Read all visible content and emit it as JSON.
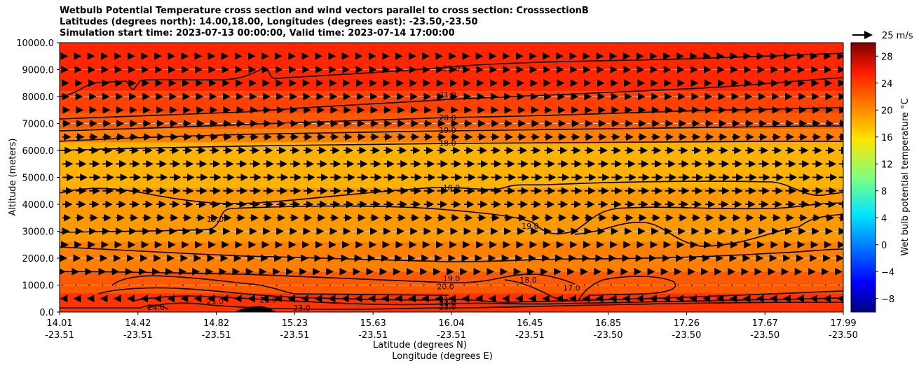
{
  "chart_data": {
    "type": "contour",
    "title": [
      "Wetbulb Potential Temperature cross section and wind vectors parallel to cross section: CrosssectionB",
      "Latitudes (degrees north): 14.00,18.00, Longitudes (degrees east): -23.50,-23.50",
      "Simulation start time: 2023-07-13 00:00:00, Valid time: 2023-07-14 17:00:00"
    ],
    "ylabel": "Altitude (meters)",
    "xlabel_lat": "Latitude (degrees N)",
    "xlabel_lon": "Longitude (degrees E)",
    "ylim": [
      0,
      10000
    ],
    "yticks": [
      {
        "value": 0,
        "label": "0.0"
      },
      {
        "value": 1000,
        "label": "1000.0"
      },
      {
        "value": 2000,
        "label": "2000.0"
      },
      {
        "value": 3000,
        "label": "3000.0"
      },
      {
        "value": 4000,
        "label": "4000.0"
      },
      {
        "value": 5000,
        "label": "5000.0"
      },
      {
        "value": 6000,
        "label": "6000.0"
      },
      {
        "value": 7000,
        "label": "7000.0"
      },
      {
        "value": 8000,
        "label": "8000.0"
      },
      {
        "value": 9000,
        "label": "9000.0"
      },
      {
        "value": 10000,
        "label": "10000.0"
      }
    ],
    "xrange": [
      14.01,
      17.99
    ],
    "xticks": [
      {
        "lat": "14.01",
        "lon": "-23.51"
      },
      {
        "lat": "14.42",
        "lon": "-23.51"
      },
      {
        "lat": "14.82",
        "lon": "-23.51"
      },
      {
        "lat": "15.23",
        "lon": "-23.51"
      },
      {
        "lat": "15.63",
        "lon": "-23.51"
      },
      {
        "lat": "16.04",
        "lon": "-23.51"
      },
      {
        "lat": "16.45",
        "lon": "-23.51"
      },
      {
        "lat": "16.85",
        "lon": "-23.50"
      },
      {
        "lat": "17.26",
        "lon": "-23.50"
      },
      {
        "lat": "17.67",
        "lon": "-23.50"
      },
      {
        "lat": "17.99",
        "lon": "-23.50"
      }
    ],
    "colorbar": {
      "label": "Wet bulb potential temperature $^\\circ$C",
      "label_text": "Wet bulb potential temperature °C",
      "range": [
        -10,
        30
      ],
      "ticks": [
        "−8",
        "−4",
        "0",
        "4",
        "8",
        "12",
        "16",
        "20",
        "24",
        "28"
      ],
      "tick_values": [
        -8,
        -4,
        0,
        4,
        8,
        12,
        16,
        20,
        24,
        28
      ],
      "colormap": "jet"
    },
    "quiver_key": {
      "label": "25 m/s",
      "speed": 25
    },
    "contours": [
      {
        "level": 22.0,
        "label": "22.0",
        "label_at": [
          16.0,
          9050
        ]
      },
      {
        "level": 21.0,
        "label": "21.0",
        "label_at": [
          15.98,
          8080
        ]
      },
      {
        "level": 20.0,
        "label": "20.0",
        "label_at": [
          15.98,
          7220
        ]
      },
      {
        "level": 19.0,
        "label": "19.0",
        "label_at": [
          15.98,
          6750
        ]
      },
      {
        "level": 18.0,
        "label": "18.0",
        "label_at": [
          15.98,
          6270
        ]
      },
      {
        "level": 18.0,
        "label": "18.0",
        "label_at": [
          16.0,
          4620
        ]
      },
      {
        "level": 19.0,
        "label": "19.0",
        "label_at": [
          14.8,
          3450
        ]
      },
      {
        "level": 19.0,
        "label": "19.0",
        "label_at": [
          16.4,
          3200
        ]
      },
      {
        "level": 19.0,
        "label": "19.0",
        "label_at": [
          16.0,
          1250
        ]
      },
      {
        "level": 20.0,
        "label": "20.0",
        "label_at": [
          15.97,
          950
        ]
      },
      {
        "level": 18.0,
        "label": "18.0",
        "label_at": [
          16.39,
          1200
        ]
      },
      {
        "level": 17.0,
        "label": "17.0",
        "label_at": [
          16.61,
          900
        ]
      },
      {
        "level": 21.0,
        "label": "21.0",
        "label_at": [
          15.98,
          450
        ]
      },
      {
        "level": 22.0,
        "label": "22.0",
        "label_at": [
          15.98,
          350
        ]
      },
      {
        "level": 23.0,
        "label": "23.0",
        "label_at": [
          15.98,
          200
        ]
      },
      {
        "level": 23.0,
        "label": "23.0",
        "label_at": [
          15.24,
          150
        ]
      },
      {
        "level": 23.0,
        "label": "23.0",
        "label_at": [
          15.07,
          450
        ]
      },
      {
        "level": 24.0,
        "label": "24.0",
        "label_at": [
          14.5,
          180
        ]
      },
      {
        "level": 21.0,
        "label": "21.0",
        "label_at": [
          14.8,
          400
        ]
      }
    ],
    "temperature_bands": [
      {
        "alt_top": 10000,
        "value": 23.5
      },
      {
        "alt_top": 8200,
        "value": 22.5
      },
      {
        "alt_top": 7400,
        "value": 21.5
      },
      {
        "alt_top": 6800,
        "value": 20.0
      },
      {
        "alt_top": 6300,
        "value": 18.0
      },
      {
        "alt_top": 4600,
        "value": 19.0
      },
      {
        "alt_top": 2600,
        "value": 20.0
      },
      {
        "alt_top": 1500,
        "value": 21.5
      },
      {
        "alt_top": 700,
        "value": 23.0
      }
    ],
    "wind_u_by_altitude": [
      {
        "alt": 9500,
        "u": 6
      },
      {
        "alt": 8000,
        "u": 8
      },
      {
        "alt": 6500,
        "u": 10
      },
      {
        "alt": 5000,
        "u": 14
      },
      {
        "alt": 4000,
        "u": 12
      },
      {
        "alt": 3000,
        "u": 8
      },
      {
        "alt": 2000,
        "u": 5
      },
      {
        "alt": 1000,
        "u": 1
      },
      {
        "alt": 400,
        "u": -2
      }
    ]
  }
}
